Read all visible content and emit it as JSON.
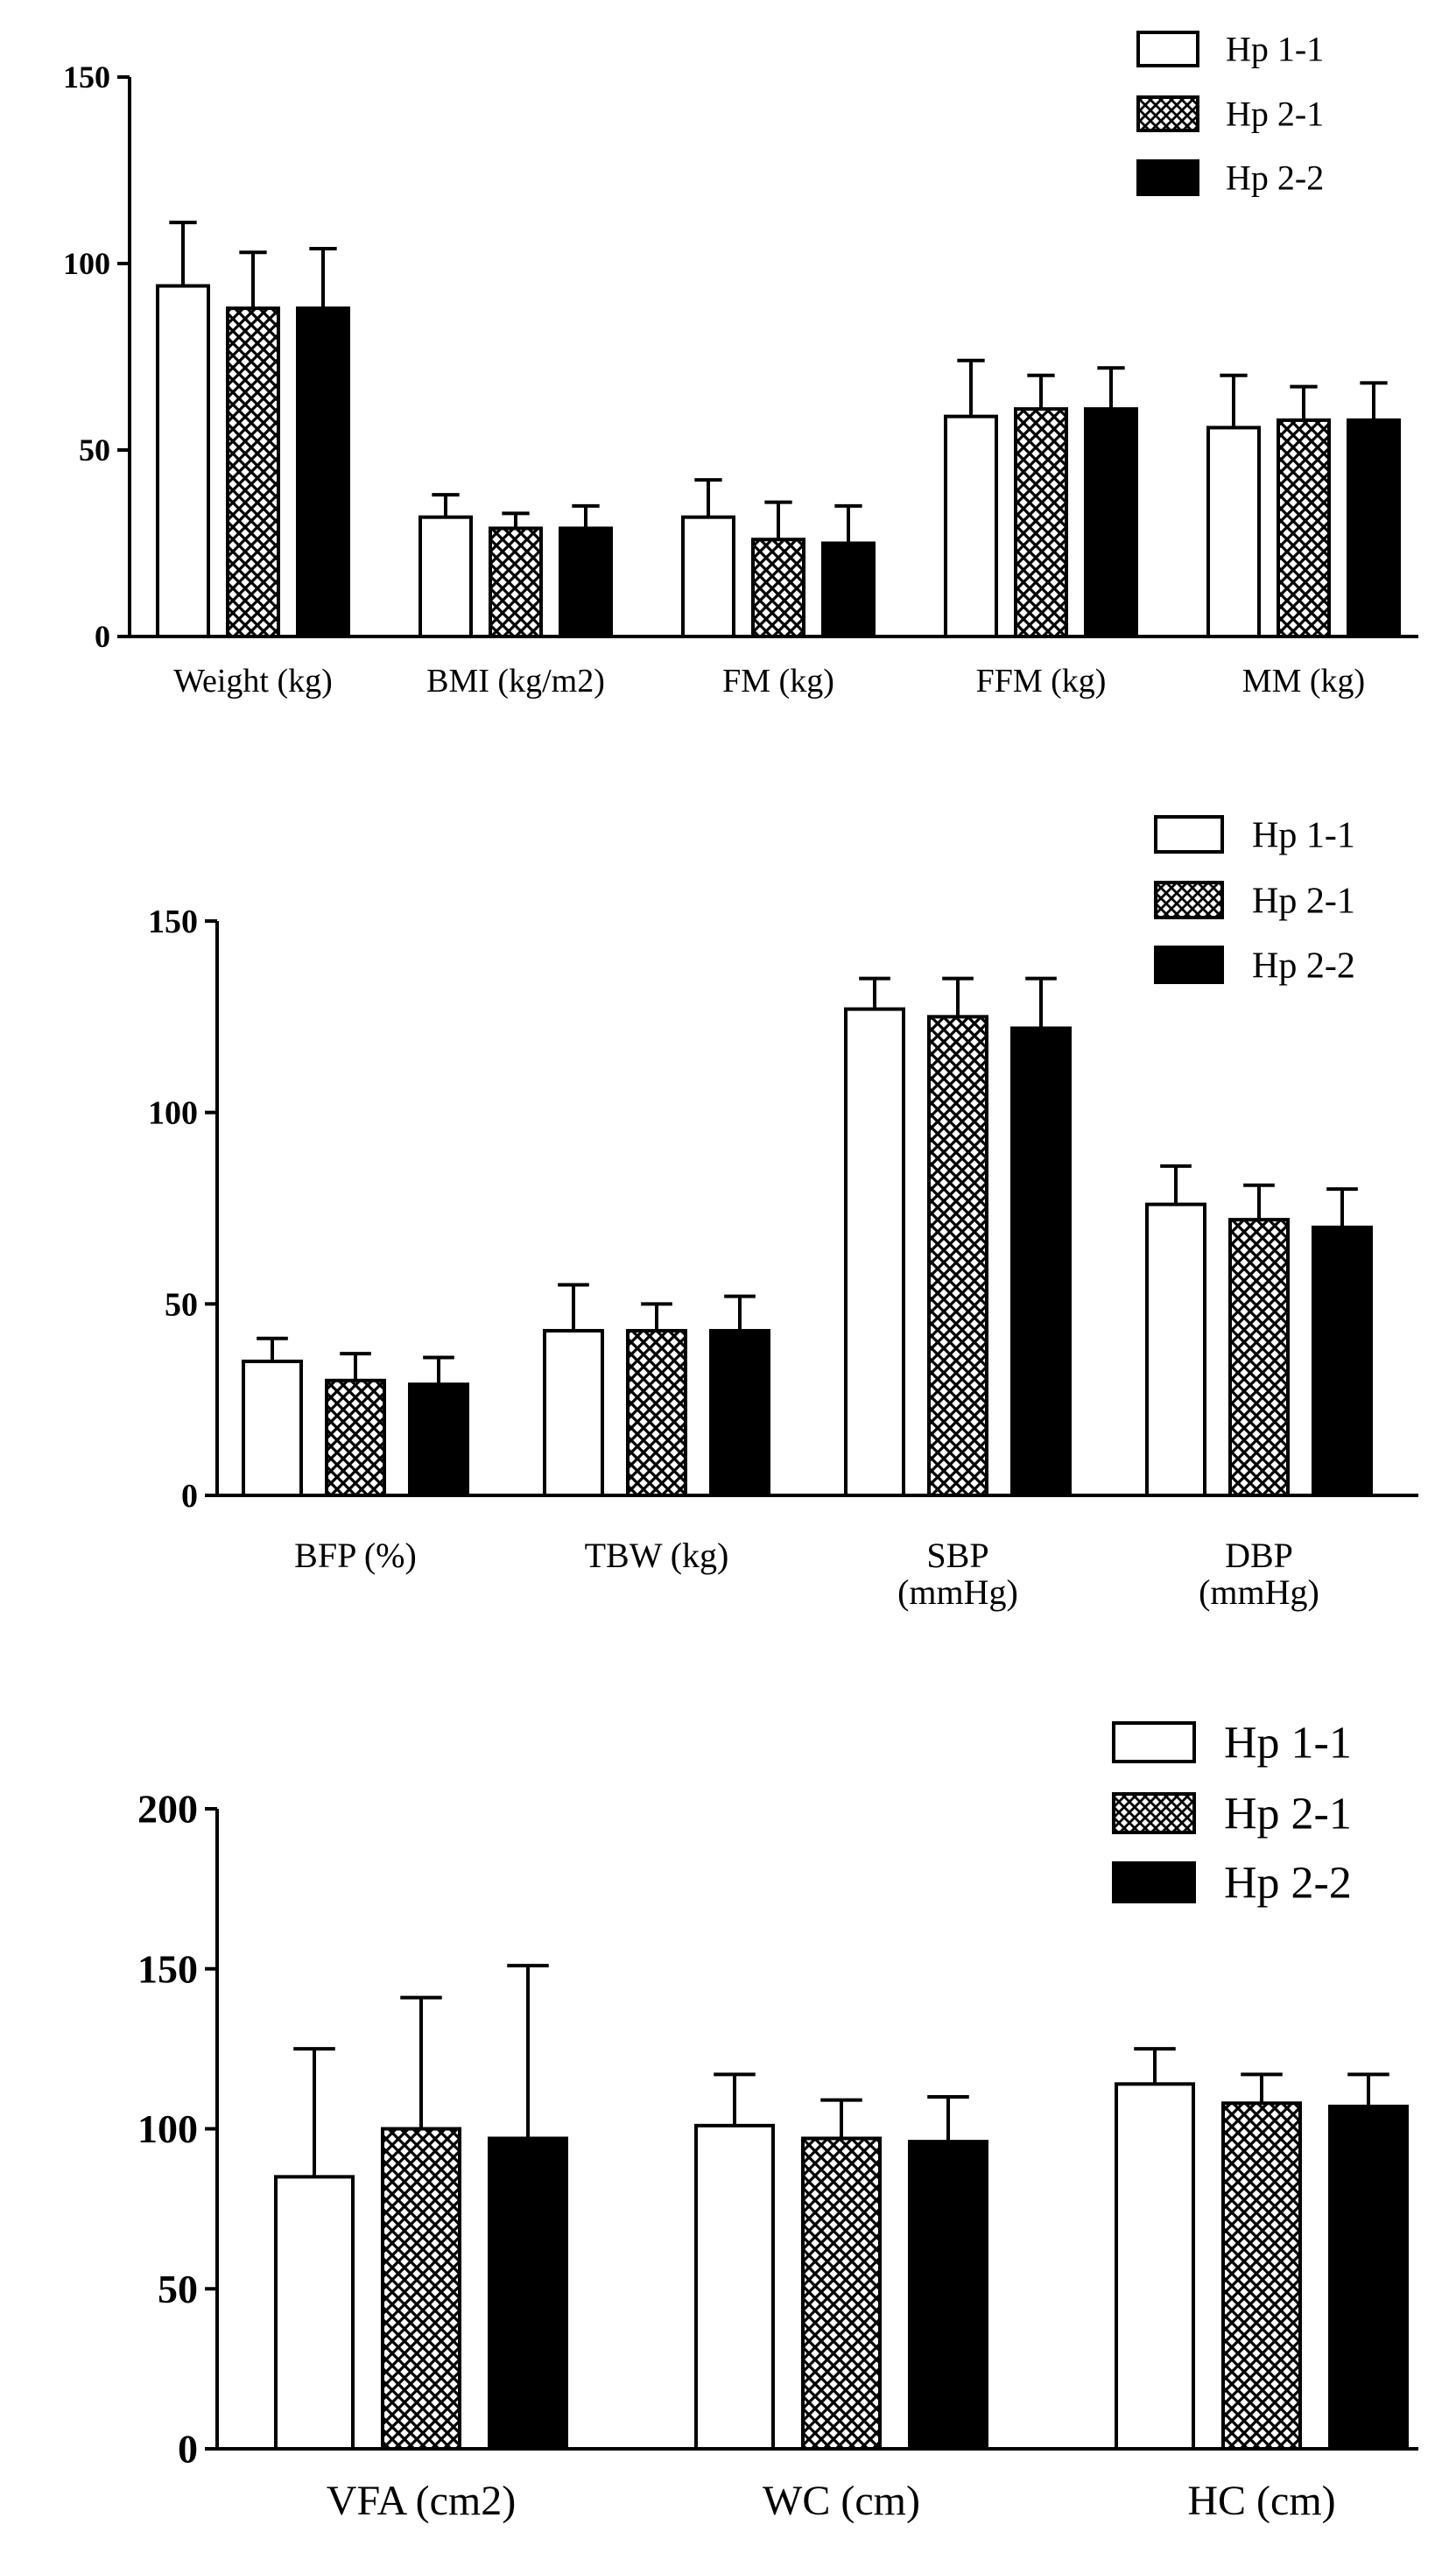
{
  "chart_data": [
    {
      "type": "bar",
      "categories": [
        "Weight (kg)",
        "BMI (kg/m2)",
        "FM (kg)",
        "FFM (kg)",
        "MM (kg)"
      ],
      "ylim": [
        0,
        150
      ],
      "yticks": [
        "0",
        "50",
        "100",
        "150"
      ],
      "legend_position": "top-right",
      "error_bars": true,
      "series": [
        {
          "name": "Hp 1-1",
          "style": "open",
          "values": [
            94,
            32,
            32,
            59,
            56
          ],
          "errors": [
            17,
            6,
            10,
            15,
            14
          ]
        },
        {
          "name": "Hp 2-1",
          "style": "crosshatch",
          "values": [
            88,
            29,
            26,
            61,
            58
          ],
          "errors": [
            15,
            4,
            10,
            9,
            9
          ]
        },
        {
          "name": "Hp 2-2",
          "style": "solid",
          "values": [
            88,
            29,
            25,
            61,
            58
          ],
          "errors": [
            16,
            6,
            10,
            11,
            10
          ]
        }
      ]
    },
    {
      "type": "bar",
      "categories": [
        [
          "BFP (%)"
        ],
        [
          "TBW (kg)"
        ],
        [
          "SBP",
          "(mmHg)"
        ],
        [
          "DBP",
          "(mmHg)"
        ]
      ],
      "ylim": [
        0,
        150
      ],
      "yticks": [
        "0",
        "50",
        "100",
        "150"
      ],
      "legend_position": "top-right",
      "error_bars": true,
      "series": [
        {
          "name": "Hp 1-1",
          "style": "open",
          "values": [
            35,
            43,
            127,
            76
          ],
          "errors": [
            6,
            12,
            8,
            10
          ]
        },
        {
          "name": "Hp 2-1",
          "style": "crosshatch",
          "values": [
            30,
            43,
            125,
            72
          ],
          "errors": [
            7,
            7,
            10,
            9
          ]
        },
        {
          "name": "Hp 2-2",
          "style": "solid",
          "values": [
            29,
            43,
            122,
            70
          ],
          "errors": [
            7,
            9,
            13,
            10
          ]
        }
      ]
    },
    {
      "type": "bar",
      "categories": [
        "VFA (cm2)",
        "WC (cm)",
        "HC (cm)"
      ],
      "ylim": [
        0,
        200
      ],
      "yticks": [
        "0",
        "50",
        "100",
        "150",
        "200"
      ],
      "legend_position": "top-right",
      "error_bars": true,
      "series": [
        {
          "name": "Hp 1-1",
          "style": "open",
          "values": [
            85,
            101,
            114
          ],
          "errors": [
            40,
            16,
            11
          ]
        },
        {
          "name": "Hp 2-1",
          "style": "crosshatch",
          "values": [
            100,
            97,
            108
          ],
          "errors": [
            41,
            12,
            9
          ]
        },
        {
          "name": "Hp 2-2",
          "style": "solid",
          "values": [
            97,
            96,
            107
          ],
          "errors": [
            54,
            14,
            10
          ]
        }
      ]
    }
  ]
}
